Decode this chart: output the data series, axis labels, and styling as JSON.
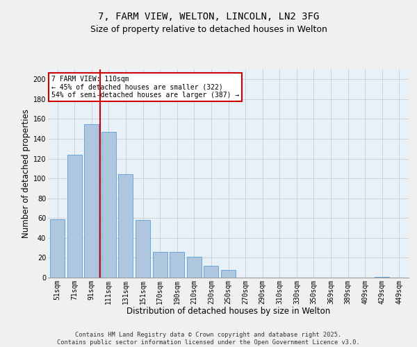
{
  "title1": "7, FARM VIEW, WELTON, LINCOLN, LN2 3FG",
  "title2": "Size of property relative to detached houses in Welton",
  "xlabel": "Distribution of detached houses by size in Welton",
  "ylabel": "Number of detached properties",
  "categories": [
    "51sqm",
    "71sqm",
    "91sqm",
    "111sqm",
    "131sqm",
    "151sqm",
    "170sqm",
    "190sqm",
    "210sqm",
    "230sqm",
    "250sqm",
    "270sqm",
    "290sqm",
    "310sqm",
    "330sqm",
    "350sqm",
    "369sqm",
    "389sqm",
    "409sqm",
    "429sqm",
    "449sqm"
  ],
  "values": [
    59,
    124,
    155,
    147,
    104,
    58,
    26,
    26,
    21,
    12,
    8,
    0,
    0,
    0,
    0,
    0,
    0,
    0,
    0,
    1,
    0
  ],
  "bar_color": "#aec6de",
  "bar_edge_color": "#5b9bd5",
  "vline_label": "7 FARM VIEW: 110sqm",
  "annotation_line1": "← 45% of detached houses are smaller (322)",
  "annotation_line2": "54% of semi-detached houses are larger (387) →",
  "annotation_box_color": "#ffffff",
  "annotation_box_edge": "#cc0000",
  "vline_color": "#cc0000",
  "vline_pos": 2.5,
  "ylim": [
    0,
    210
  ],
  "yticks": [
    0,
    20,
    40,
    60,
    80,
    100,
    120,
    140,
    160,
    180,
    200
  ],
  "grid_color": "#cccccc",
  "bg_color": "#e8f0f8",
  "fig_bg_color": "#f0f0f0",
  "footer1": "Contains HM Land Registry data © Crown copyright and database right 2025.",
  "footer2": "Contains public sector information licensed under the Open Government Licence v3.0.",
  "title1_fontsize": 10,
  "title2_fontsize": 9,
  "tick_fontsize": 7,
  "xlabel_fontsize": 8.5,
  "ylabel_fontsize": 8.5,
  "footer_fontsize": 6.2,
  "annot_fontsize": 7
}
